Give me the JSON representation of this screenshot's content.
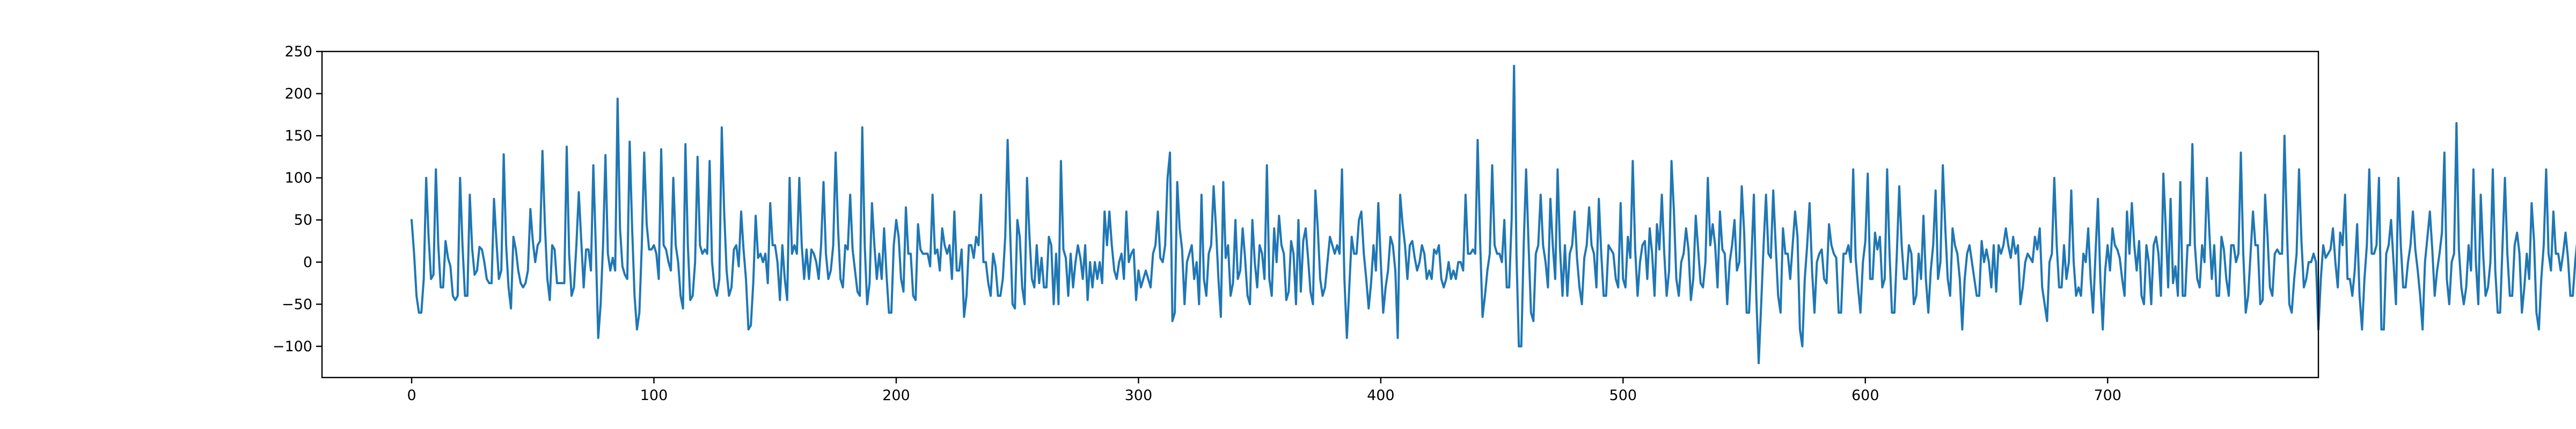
{
  "chart_data": {
    "type": "line",
    "title": "",
    "xlabel": "",
    "ylabel": "",
    "xlim": [
      -37,
      787
    ],
    "ylim": [
      -137,
      250
    ],
    "x_ticks": [
      0,
      100,
      200,
      300,
      400,
      500,
      600,
      700
    ],
    "y_ticks": [
      -100,
      -50,
      0,
      50,
      100,
      150,
      200,
      250
    ],
    "grid": false,
    "legend": "none",
    "colors": {
      "series": "#1f77b4",
      "axes": "#000000",
      "background": "#ffffff"
    },
    "series": [
      {
        "x_start": 0,
        "x_step": 1,
        "values": [
          50,
          10,
          -40,
          -60,
          -60,
          -20,
          100,
          30,
          -20,
          -15,
          110,
          20,
          -30,
          -30,
          25,
          5,
          -5,
          -40,
          -45,
          -40,
          100,
          20,
          -40,
          -40,
          80,
          15,
          -15,
          -10,
          18,
          15,
          0,
          -20,
          -25,
          -25,
          75,
          25,
          -20,
          -10,
          128,
          20,
          -30,
          -55,
          30,
          15,
          -10,
          -25,
          -30,
          -25,
          -10,
          63,
          25,
          0,
          20,
          25,
          132,
          45,
          -20,
          -45,
          20,
          15,
          -25,
          -25,
          -25,
          -25,
          137,
          10,
          -40,
          -30,
          20,
          83,
          25,
          -30,
          15,
          15,
          -10,
          115,
          20,
          -90,
          -50,
          20,
          127,
          10,
          -10,
          5,
          -10,
          194,
          40,
          -5,
          -15,
          -20,
          143,
          40,
          -40,
          -80,
          -60,
          20,
          130,
          45,
          15,
          15,
          20,
          10,
          -20,
          134,
          20,
          15,
          0,
          -10,
          100,
          20,
          0,
          -40,
          -55,
          140,
          20,
          -45,
          -40,
          0,
          125,
          20,
          10,
          15,
          10,
          120,
          0,
          -30,
          -40,
          -20,
          160,
          60,
          -10,
          -40,
          -30,
          15,
          20,
          -5,
          60,
          15,
          -20,
          -80,
          -75,
          -25,
          55,
          5,
          10,
          0,
          10,
          -25,
          70,
          20,
          20,
          0,
          -45,
          20,
          -20,
          -45,
          100,
          10,
          20,
          10,
          100,
          20,
          -20,
          15,
          -20,
          15,
          10,
          0,
          -20,
          20,
          95,
          10,
          -20,
          -10,
          20,
          130,
          40,
          -20,
          -30,
          20,
          15,
          80,
          15,
          -10,
          -35,
          -40,
          160,
          20,
          -50,
          -25,
          70,
          20,
          -20,
          10,
          -20,
          40,
          -15,
          -60,
          -60,
          20,
          50,
          30,
          -20,
          -35,
          65,
          10,
          10,
          -40,
          -45,
          45,
          15,
          10,
          10,
          10,
          -5,
          80,
          10,
          15,
          -10,
          40,
          20,
          10,
          20,
          -20,
          60,
          -10,
          -10,
          15,
          -65,
          -40,
          20,
          20,
          5,
          30,
          20,
          80,
          0,
          0,
          -25,
          -40,
          10,
          -5,
          -40,
          -40,
          -20,
          30,
          145,
          40,
          -50,
          -55,
          50,
          30,
          -30,
          -50,
          100,
          30,
          -20,
          -30,
          20,
          -25,
          5,
          -30,
          -30,
          30,
          20,
          -50,
          10,
          -50,
          120,
          15,
          5,
          -40,
          10,
          -30,
          0,
          20,
          5,
          -20,
          20,
          -45,
          0,
          -30,
          0,
          -20,
          0,
          -25,
          60,
          20,
          60,
          20,
          -10,
          -20,
          0,
          10,
          -20,
          60,
          0,
          10,
          15,
          -45,
          -10,
          -30,
          -20,
          -10,
          -20,
          -30,
          10,
          20,
          60,
          5,
          0,
          20,
          100,
          130,
          -70,
          -60,
          95,
          40,
          15,
          -50,
          0,
          10,
          20,
          -20,
          0,
          -50,
          80,
          -20,
          -40,
          10,
          20,
          90,
          40,
          -20,
          -65,
          95,
          5,
          20,
          -40,
          -25,
          50,
          -20,
          -10,
          40,
          5,
          -40,
          -50,
          50,
          0,
          -30,
          20,
          10,
          -20,
          115,
          -20,
          -40,
          40,
          0,
          55,
          20,
          10,
          -45,
          -35,
          25,
          10,
          -50,
          50,
          -35,
          25,
          40,
          5,
          -35,
          -50,
          85,
          40,
          -20,
          -40,
          -30,
          0,
          30,
          20,
          10,
          20,
          10,
          110,
          -20,
          -90,
          -30,
          30,
          10,
          10,
          50,
          60,
          10,
          -20,
          -55,
          -25,
          20,
          -10,
          70,
          0,
          -60,
          -30,
          -10,
          30,
          20,
          -10,
          -90,
          80,
          45,
          20,
          -20,
          20,
          25,
          5,
          -10,
          0,
          20,
          10,
          -20,
          -10,
          -20,
          15,
          10,
          20,
          -20,
          -30,
          -20,
          0,
          -20,
          -10,
          -20,
          0,
          0,
          -10,
          80,
          10,
          10,
          15,
          10,
          145,
          25,
          -65,
          -40,
          -10,
          10,
          115,
          20,
          10,
          10,
          0,
          50,
          -30,
          -30,
          50,
          233,
          10,
          -100,
          -100,
          20,
          110,
          20,
          -60,
          -70,
          10,
          20,
          80,
          20,
          0,
          -30,
          75,
          20,
          -20,
          110,
          15,
          -40,
          20,
          -40,
          10,
          20,
          60,
          5,
          -30,
          -50,
          5,
          20,
          65,
          20,
          10,
          -30,
          75,
          10,
          -40,
          -40,
          20,
          15,
          10,
          -20,
          -30,
          70,
          -20,
          -30,
          30,
          5,
          120,
          15,
          -40,
          0,
          20,
          25,
          -20,
          40,
          10,
          -40,
          45,
          15,
          80,
          10,
          -40,
          -10,
          120,
          60,
          -20,
          -40,
          0,
          10,
          40,
          15,
          -45,
          -20,
          55,
          15,
          -25,
          -30,
          0,
          100,
          20,
          45,
          20,
          -30,
          60,
          15,
          10,
          -50,
          0,
          20,
          50,
          -10,
          0,
          90,
          35,
          -60,
          -60,
          5,
          80,
          -40,
          -120,
          -50,
          20,
          80,
          10,
          5,
          85,
          20,
          -40,
          -60,
          40,
          10,
          10,
          -20,
          20,
          60,
          30,
          -80,
          -100,
          -20,
          20,
          70,
          -10,
          -60,
          0,
          10,
          15,
          -20,
          -25,
          45,
          20,
          10,
          5,
          -60,
          -60,
          10,
          10,
          20,
          0,
          110,
          5,
          -30,
          -60,
          0,
          25,
          105,
          -20,
          -20,
          35,
          15,
          30,
          -30,
          -20,
          110,
          10,
          -60,
          -60,
          10,
          90,
          20,
          -20,
          -20,
          20,
          10,
          -50,
          -40,
          10,
          -20,
          55,
          -20,
          -60,
          -10,
          20,
          85,
          -20,
          0,
          115,
          40,
          -20,
          -40,
          40,
          20,
          10,
          -20,
          -80,
          -20,
          10,
          20,
          0,
          -20,
          -40,
          -40,
          25,
          0,
          15,
          0,
          -30,
          20,
          -35,
          20,
          10,
          20,
          40,
          20,
          5,
          30,
          10,
          20,
          -50,
          -30,
          0,
          10,
          5,
          0,
          30,
          15,
          40,
          -30,
          -50,
          -70,
          0,
          10,
          100,
          20,
          -30,
          -30,
          20,
          -20,
          0,
          85,
          0,
          -40,
          -30,
          -40,
          10,
          0,
          40,
          -20,
          -60,
          10,
          75,
          -20,
          -80,
          -10,
          20,
          -10,
          40,
          20,
          15,
          5,
          -20,
          -40,
          60,
          10,
          70,
          20,
          -10,
          25,
          -40,
          -50,
          20,
          0,
          -50,
          20,
          30,
          10,
          -40,
          105,
          40,
          -30,
          75,
          -25,
          -5,
          -40,
          95,
          -40,
          -40,
          20,
          20,
          140,
          20,
          -20,
          -30,
          20,
          0,
          100,
          35,
          -20,
          20,
          -40,
          -40,
          30,
          15,
          -20,
          -40,
          20,
          20,
          0,
          10,
          130,
          10,
          -60,
          -40,
          10,
          60,
          20,
          20,
          -50,
          -45,
          80,
          30,
          -30,
          -40,
          10,
          15,
          10,
          10,
          150,
          40,
          -50,
          -60,
          -20,
          10,
          110,
          25,
          -30,
          -20,
          0,
          0,
          10,
          0,
          -80,
          -20,
          20,
          5,
          10,
          15,
          40,
          0,
          -30,
          35,
          20,
          80,
          -20,
          -20,
          -40,
          -10,
          45,
          -40,
          -80,
          -20,
          20,
          110,
          10,
          10,
          20,
          100,
          -80,
          -80,
          10,
          20,
          50,
          0,
          -50,
          100,
          20,
          -30,
          -30,
          0,
          20,
          60,
          15,
          -10,
          -40,
          -80,
          0,
          30,
          60,
          15,
          -40,
          -10,
          10,
          35,
          130,
          -20,
          -50,
          0,
          10,
          165,
          15,
          -30,
          -50,
          -30,
          20,
          -10,
          110,
          0,
          -50,
          80,
          10,
          -40,
          -30,
          0,
          110,
          -10,
          -60,
          -60,
          20,
          100,
          10,
          -40,
          -40,
          20,
          35,
          10,
          -60,
          -30,
          10,
          -20,
          70,
          25,
          -60,
          -80,
          -20,
          20,
          110,
          10,
          -10,
          60,
          10,
          10,
          -10,
          10,
          35,
          5,
          -40,
          -40,
          0,
          30,
          130,
          40,
          -40,
          -40,
          0,
          -20,
          40,
          10,
          -20,
          5,
          20,
          40,
          30,
          0,
          20,
          100,
          10,
          -20,
          -40,
          -50,
          -20,
          20,
          65,
          10,
          -50,
          20,
          -20,
          -50,
          -40,
          0,
          15,
          40,
          20,
          30,
          40,
          10,
          -30,
          -40,
          110,
          20,
          -30,
          -30,
          -10,
          5,
          110,
          -60,
          -70,
          -20,
          20,
          35,
          20,
          -40,
          -60,
          -30,
          0,
          130,
          15,
          -45,
          -40,
          0,
          20,
          110,
          -20,
          30,
          10,
          90,
          40,
          20,
          -40,
          -60,
          0,
          10,
          0,
          -20,
          0,
          -20,
          75,
          0,
          -80,
          -30,
          0,
          20,
          100,
          0,
          -20,
          20,
          45,
          40,
          -20,
          -20,
          0,
          40,
          60,
          20,
          -80,
          -40,
          80,
          15,
          -40,
          -35,
          30,
          10,
          -30,
          -50,
          -30,
          90,
          10,
          -20,
          -30,
          130,
          -10,
          -60,
          -50,
          20,
          130,
          30,
          -10,
          -20,
          -20,
          40,
          15,
          -25,
          -20,
          100,
          -50,
          -60,
          -20,
          45,
          40,
          0,
          -70,
          -60,
          0,
          20,
          40,
          -20,
          -50,
          20,
          20,
          60,
          20,
          -20,
          -45,
          10,
          40,
          10,
          -30,
          120,
          20,
          -60,
          -40,
          100,
          10,
          -20,
          -30,
          -10,
          10,
          60,
          -30,
          -70,
          10,
          15,
          100,
          20,
          -60,
          -50,
          10,
          50,
          40,
          20,
          0,
          20,
          60,
          -20,
          -50,
          -40,
          -10,
          20,
          100,
          10,
          -40,
          10,
          20,
          30,
          45,
          -70,
          -100,
          20,
          30,
          60,
          20,
          0,
          -20,
          50,
          20,
          -20,
          -30,
          20,
          0,
          115,
          40,
          -40,
          -60,
          -60,
          0,
          30,
          0,
          -50,
          -30,
          75,
          -30,
          -40,
          30,
          20,
          50,
          30,
          0,
          10,
          20,
          90,
          -20,
          -70,
          -40,
          0,
          20,
          30,
          20,
          -30,
          0,
          40,
          -20,
          -40,
          20,
          10,
          -20,
          -30,
          10,
          40,
          20,
          -80,
          -50,
          30,
          20,
          40,
          45,
          40,
          10,
          -40,
          30,
          20,
          55,
          -20,
          -60,
          -20,
          100,
          40,
          0,
          -85,
          -40,
          190,
          45,
          -20,
          -40,
          10,
          35,
          20,
          0,
          25,
          20,
          -30,
          -35,
          20,
          10,
          -40,
          -20,
          15,
          -20,
          -30,
          30,
          -10,
          10,
          45,
          20,
          -30,
          -20,
          60,
          20,
          -40,
          -20,
          20,
          0,
          -70,
          -40,
          30,
          40,
          50,
          10,
          -40,
          -10,
          20,
          0,
          190,
          -30,
          -85,
          20
        ]
      }
    ]
  }
}
